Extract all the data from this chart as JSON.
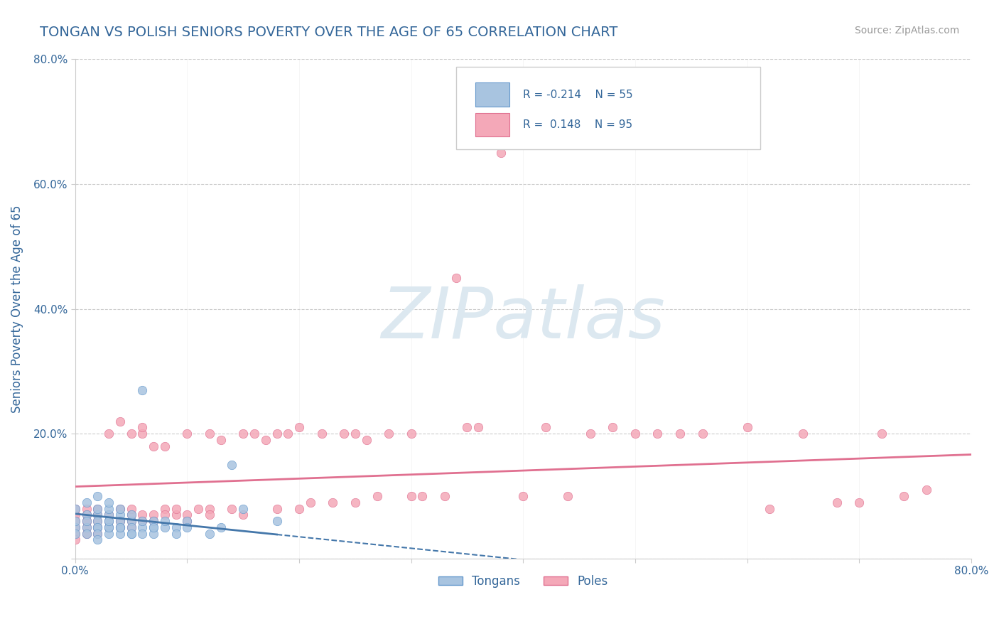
{
  "title": "TONGAN VS POLISH SENIORS POVERTY OVER THE AGE OF 65 CORRELATION CHART",
  "source": "Source: ZipAtlas.com",
  "ylabel": "Seniors Poverty Over the Age of 65",
  "tongan_R": -0.214,
  "tongan_N": 55,
  "polish_R": 0.148,
  "polish_N": 95,
  "tongan_color": "#a8c4e0",
  "polish_color": "#f4a8b8",
  "tongan_color_dark": "#6699cc",
  "polish_color_dark": "#e07090",
  "bg_color": "#ffffff",
  "grid_color": "#cccccc",
  "title_color": "#336699",
  "watermark_color": "#dce8f0",
  "xlim": [
    0.0,
    0.8
  ],
  "ylim": [
    0.0,
    0.8
  ],
  "x_ticks": [
    0.0,
    0.1,
    0.2,
    0.3,
    0.4,
    0.5,
    0.6,
    0.7,
    0.8
  ],
  "y_ticks": [
    0.0,
    0.2,
    0.4,
    0.6,
    0.8
  ],
  "tongan_scatter": [
    [
      0.0,
      0.05
    ],
    [
      0.0,
      0.04
    ],
    [
      0.0,
      0.06
    ],
    [
      0.0,
      0.08
    ],
    [
      0.01,
      0.07
    ],
    [
      0.01,
      0.05
    ],
    [
      0.01,
      0.09
    ],
    [
      0.01,
      0.06
    ],
    [
      0.01,
      0.04
    ],
    [
      0.02,
      0.05
    ],
    [
      0.02,
      0.07
    ],
    [
      0.02,
      0.06
    ],
    [
      0.02,
      0.08
    ],
    [
      0.02,
      0.05
    ],
    [
      0.02,
      0.04
    ],
    [
      0.02,
      0.03
    ],
    [
      0.02,
      0.1
    ],
    [
      0.03,
      0.05
    ],
    [
      0.03,
      0.06
    ],
    [
      0.03,
      0.07
    ],
    [
      0.03,
      0.08
    ],
    [
      0.03,
      0.04
    ],
    [
      0.03,
      0.09
    ],
    [
      0.03,
      0.05
    ],
    [
      0.03,
      0.06
    ],
    [
      0.04,
      0.05
    ],
    [
      0.04,
      0.07
    ],
    [
      0.04,
      0.06
    ],
    [
      0.04,
      0.04
    ],
    [
      0.04,
      0.08
    ],
    [
      0.04,
      0.05
    ],
    [
      0.05,
      0.04
    ],
    [
      0.05,
      0.06
    ],
    [
      0.05,
      0.05
    ],
    [
      0.05,
      0.07
    ],
    [
      0.05,
      0.04
    ],
    [
      0.06,
      0.05
    ],
    [
      0.06,
      0.06
    ],
    [
      0.06,
      0.04
    ],
    [
      0.06,
      0.27
    ],
    [
      0.07,
      0.05
    ],
    [
      0.07,
      0.06
    ],
    [
      0.07,
      0.04
    ],
    [
      0.07,
      0.05
    ],
    [
      0.08,
      0.05
    ],
    [
      0.08,
      0.06
    ],
    [
      0.09,
      0.05
    ],
    [
      0.09,
      0.04
    ],
    [
      0.1,
      0.06
    ],
    [
      0.1,
      0.05
    ],
    [
      0.12,
      0.04
    ],
    [
      0.13,
      0.05
    ],
    [
      0.14,
      0.15
    ],
    [
      0.15,
      0.08
    ],
    [
      0.18,
      0.06
    ]
  ],
  "polish_scatter": [
    [
      0.0,
      0.05
    ],
    [
      0.0,
      0.07
    ],
    [
      0.0,
      0.04
    ],
    [
      0.0,
      0.06
    ],
    [
      0.0,
      0.08
    ],
    [
      0.0,
      0.03
    ],
    [
      0.01,
      0.06
    ],
    [
      0.01,
      0.05
    ],
    [
      0.01,
      0.07
    ],
    [
      0.01,
      0.04
    ],
    [
      0.01,
      0.08
    ],
    [
      0.01,
      0.06
    ],
    [
      0.02,
      0.05
    ],
    [
      0.02,
      0.07
    ],
    [
      0.02,
      0.06
    ],
    [
      0.02,
      0.04
    ],
    [
      0.02,
      0.08
    ],
    [
      0.02,
      0.05
    ],
    [
      0.03,
      0.06
    ],
    [
      0.03,
      0.2
    ],
    [
      0.03,
      0.07
    ],
    [
      0.03,
      0.05
    ],
    [
      0.04,
      0.06
    ],
    [
      0.04,
      0.08
    ],
    [
      0.04,
      0.05
    ],
    [
      0.04,
      0.22
    ],
    [
      0.05,
      0.07
    ],
    [
      0.05,
      0.06
    ],
    [
      0.05,
      0.2
    ],
    [
      0.05,
      0.08
    ],
    [
      0.05,
      0.05
    ],
    [
      0.06,
      0.2
    ],
    [
      0.06,
      0.07
    ],
    [
      0.06,
      0.21
    ],
    [
      0.06,
      0.06
    ],
    [
      0.07,
      0.07
    ],
    [
      0.07,
      0.18
    ],
    [
      0.07,
      0.06
    ],
    [
      0.08,
      0.08
    ],
    [
      0.08,
      0.07
    ],
    [
      0.08,
      0.18
    ],
    [
      0.09,
      0.07
    ],
    [
      0.09,
      0.08
    ],
    [
      0.1,
      0.2
    ],
    [
      0.1,
      0.07
    ],
    [
      0.1,
      0.06
    ],
    [
      0.11,
      0.08
    ],
    [
      0.12,
      0.08
    ],
    [
      0.12,
      0.2
    ],
    [
      0.12,
      0.07
    ],
    [
      0.13,
      0.19
    ],
    [
      0.14,
      0.08
    ],
    [
      0.15,
      0.2
    ],
    [
      0.15,
      0.07
    ],
    [
      0.16,
      0.2
    ],
    [
      0.17,
      0.19
    ],
    [
      0.18,
      0.08
    ],
    [
      0.18,
      0.2
    ],
    [
      0.19,
      0.2
    ],
    [
      0.2,
      0.08
    ],
    [
      0.2,
      0.21
    ],
    [
      0.21,
      0.09
    ],
    [
      0.22,
      0.2
    ],
    [
      0.23,
      0.09
    ],
    [
      0.24,
      0.2
    ],
    [
      0.25,
      0.09
    ],
    [
      0.25,
      0.2
    ],
    [
      0.26,
      0.19
    ],
    [
      0.27,
      0.1
    ],
    [
      0.28,
      0.2
    ],
    [
      0.3,
      0.1
    ],
    [
      0.3,
      0.2
    ],
    [
      0.31,
      0.1
    ],
    [
      0.33,
      0.1
    ],
    [
      0.34,
      0.45
    ],
    [
      0.35,
      0.21
    ],
    [
      0.36,
      0.21
    ],
    [
      0.38,
      0.65
    ],
    [
      0.4,
      0.1
    ],
    [
      0.42,
      0.21
    ],
    [
      0.44,
      0.1
    ],
    [
      0.46,
      0.2
    ],
    [
      0.48,
      0.21
    ],
    [
      0.5,
      0.2
    ],
    [
      0.52,
      0.2
    ],
    [
      0.54,
      0.2
    ],
    [
      0.56,
      0.2
    ],
    [
      0.6,
      0.21
    ],
    [
      0.62,
      0.08
    ],
    [
      0.65,
      0.2
    ],
    [
      0.68,
      0.09
    ],
    [
      0.7,
      0.09
    ],
    [
      0.72,
      0.2
    ],
    [
      0.74,
      0.1
    ],
    [
      0.76,
      0.11
    ]
  ]
}
